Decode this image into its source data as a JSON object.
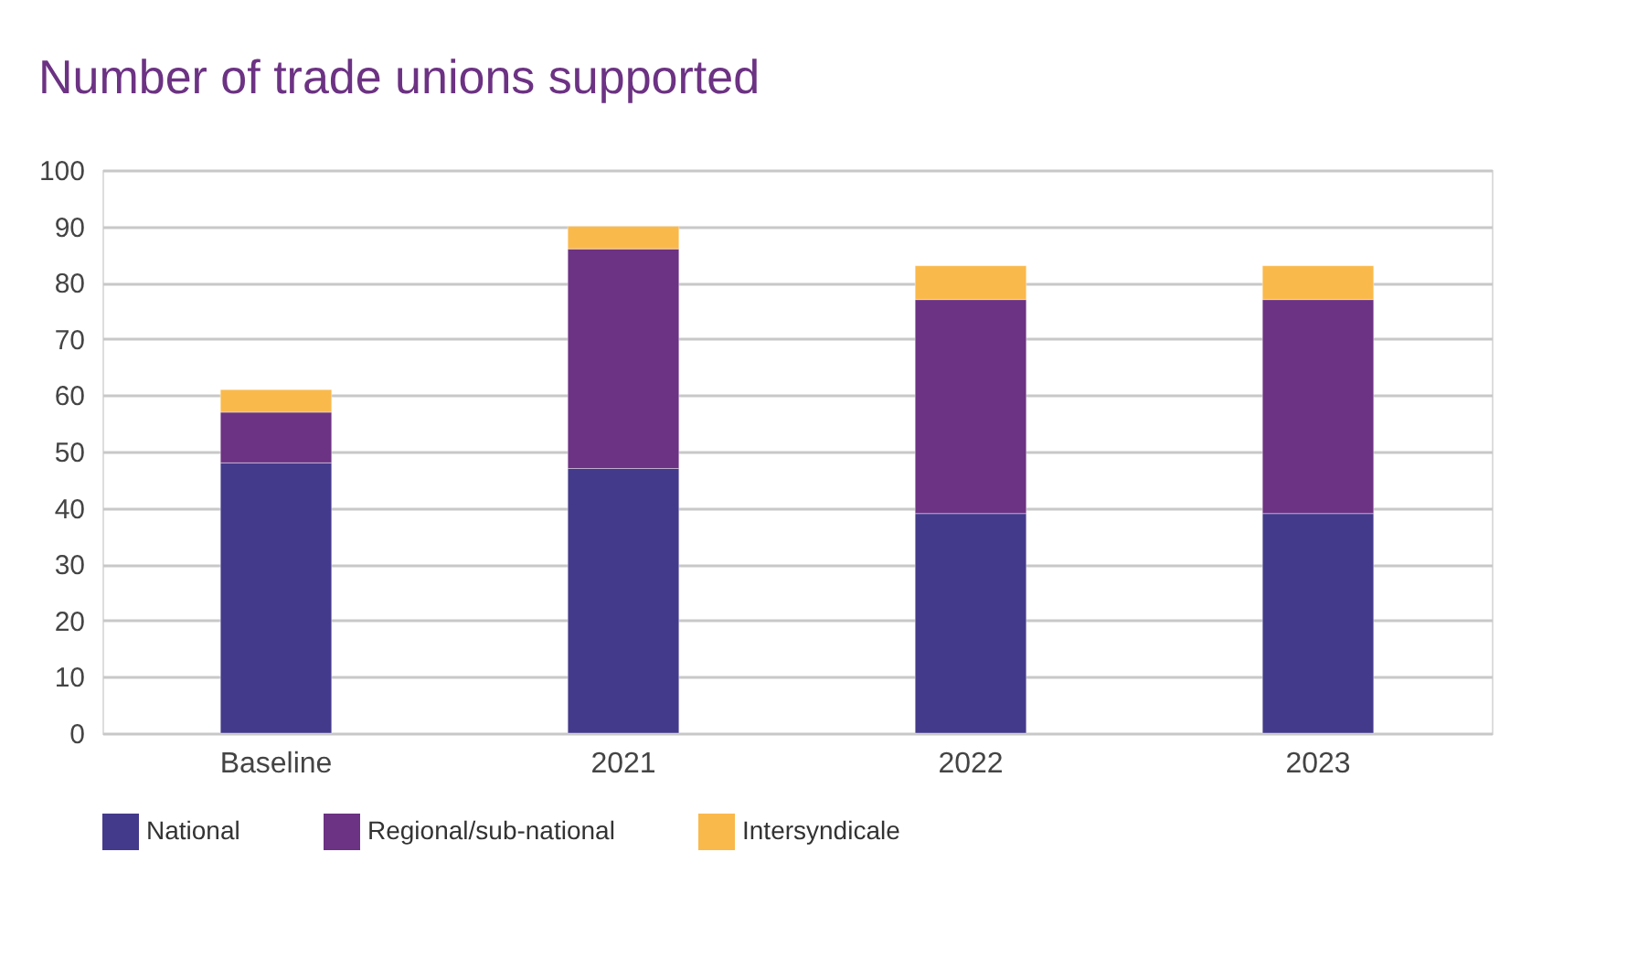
{
  "chart_data": {
    "type": "bar",
    "title": "Number of trade unions supported",
    "stacked": true,
    "categories": [
      "Baseline",
      "2021",
      "2022",
      "2023"
    ],
    "series": [
      {
        "name": "National",
        "color": "#443a8b",
        "values": [
          48,
          47,
          39,
          39
        ]
      },
      {
        "name": "Regional/sub-national",
        "color": "#6c3283",
        "values": [
          9,
          39,
          38,
          38
        ]
      },
      {
        "name": "Intersyndicale",
        "color": "#fab94b",
        "values": [
          4,
          4,
          6,
          6
        ]
      }
    ],
    "ylim": [
      0,
      100
    ],
    "yticks": [
      0,
      10,
      20,
      30,
      40,
      50,
      60,
      70,
      80,
      90,
      100
    ],
    "grid": "y",
    "legend": "bottom"
  }
}
